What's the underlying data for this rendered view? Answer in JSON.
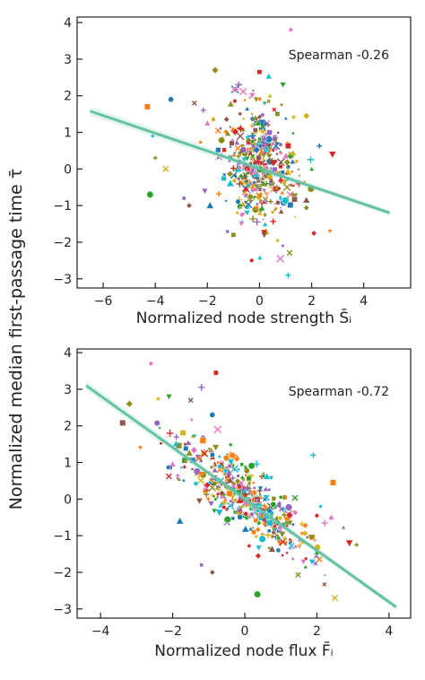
{
  "figure": {
    "shared_ylabel": "Normalized median first-passage time τ̄"
  },
  "palette": [
    "#e377c2",
    "#1f77b4",
    "#2ca02c",
    "#d62728",
    "#ff7f0e",
    "#9467bd",
    "#8c8c1f",
    "#17becf",
    "#8c564b",
    "#d8b21d"
  ],
  "fit_color": "#66c2a5",
  "chart_data": [
    {
      "type": "scatter",
      "title": "",
      "xlabel": "Normalized node strength S̄ᵢ",
      "ylabel": "Normalized median first-passage time τ̄",
      "xlim": [
        -7,
        5.8
      ],
      "ylim": [
        -3.25,
        4.15
      ],
      "xticks": [
        -6,
        -4,
        -2,
        0,
        2,
        4
      ],
      "xtick_labels": [
        "−6",
        "−4",
        "−2",
        "0",
        "2",
        "4"
      ],
      "yticks": [
        -3,
        -2,
        -1,
        0,
        1,
        2,
        3,
        4
      ],
      "ytick_labels": [
        "−3",
        "−2",
        "−1",
        "0",
        "1",
        "2",
        "3",
        "4"
      ],
      "annotation": "Spearman -0.26",
      "spearman": -0.26,
      "grid": false,
      "fit_line": {
        "x": [
          -6.5,
          5.0
        ],
        "y": [
          1.58,
          -1.2
        ]
      },
      "points": [
        {
          "x": 1.2,
          "y": 3.8
        },
        {
          "x": 0.0,
          "y": 2.65
        },
        {
          "x": -1.7,
          "y": 2.7
        },
        {
          "x": 0.4,
          "y": 2.0
        },
        {
          "x": 0.9,
          "y": 2.3
        },
        {
          "x": -0.8,
          "y": 2.3
        },
        {
          "x": -2.5,
          "y": 1.8
        },
        {
          "x": -3.4,
          "y": 1.9
        },
        {
          "x": -4.3,
          "y": 1.7
        },
        {
          "x": -4.1,
          "y": 0.9
        },
        {
          "x": -2.0,
          "y": 1.25
        },
        {
          "x": 2.8,
          "y": 0.4
        },
        {
          "x": -4.0,
          "y": 0.3
        },
        {
          "x": -3.6,
          "y": 0.0
        },
        {
          "x": -4.2,
          "y": -0.7
        },
        {
          "x": -2.9,
          "y": -0.8
        },
        {
          "x": -2.7,
          "y": -1.0
        },
        {
          "x": -1.9,
          "y": -1.0
        },
        {
          "x": 2.7,
          "y": -1.7
        },
        {
          "x": 1.1,
          "y": -2.9
        },
        {
          "x": 0.8,
          "y": -2.45
        },
        {
          "x": -0.3,
          "y": -2.5
        },
        {
          "x": -1.0,
          "y": -1.8
        },
        {
          "x": 1.8,
          "y": 1.45
        },
        {
          "x": 2.0,
          "y": 0.0
        },
        {
          "x": -2.1,
          "y": -0.6
        }
      ],
      "cloud": {
        "count": 430,
        "x_center": 0.0,
        "x_spread": 0.75,
        "y_center": 0.05,
        "y_spread": 0.85,
        "slope": -0.24
      }
    },
    {
      "type": "scatter",
      "title": "",
      "xlabel": "Normalized node flux F̄ᵢ",
      "ylabel": "Normalized median first-passage time τ̄",
      "xlim": [
        -4.65,
        4.6
      ],
      "ylim": [
        -3.25,
        4.1
      ],
      "xticks": [
        -4,
        -2,
        0,
        2,
        4
      ],
      "xtick_labels": [
        "−4",
        "−2",
        "0",
        "2",
        "4"
      ],
      "yticks": [
        -3,
        -2,
        -1,
        0,
        1,
        2,
        3,
        4
      ],
      "ytick_labels": [
        "−3",
        "−2",
        "−1",
        "0",
        "1",
        "2",
        "3",
        "4"
      ],
      "annotation": "Spearman -0.72",
      "spearman": -0.72,
      "grid": false,
      "fit_line": {
        "x": [
          -4.4,
          4.2
        ],
        "y": [
          3.1,
          -2.95
        ]
      },
      "points": [
        {
          "x": -2.6,
          "y": 3.7
        },
        {
          "x": -0.8,
          "y": 3.45
        },
        {
          "x": -3.2,
          "y": 2.6
        },
        {
          "x": -2.4,
          "y": 2.75
        },
        {
          "x": -2.1,
          "y": 2.8
        },
        {
          "x": -1.2,
          "y": 3.05
        },
        {
          "x": -1.5,
          "y": 2.7
        },
        {
          "x": -0.9,
          "y": 2.3
        },
        {
          "x": 2.45,
          "y": 0.45
        },
        {
          "x": 2.1,
          "y": -0.2
        },
        {
          "x": 2.4,
          "y": -0.5
        },
        {
          "x": 2.9,
          "y": -1.2
        },
        {
          "x": 3.1,
          "y": -1.25
        },
        {
          "x": 2.5,
          "y": -2.7
        },
        {
          "x": 0.35,
          "y": -2.6
        },
        {
          "x": -1.2,
          "y": -1.8
        },
        {
          "x": -0.9,
          "y": -2.0
        },
        {
          "x": -1.8,
          "y": -0.6
        },
        {
          "x": -2.9,
          "y": 1.4
        },
        {
          "x": 1.9,
          "y": 1.2
        },
        {
          "x": -0.75,
          "y": 1.9
        },
        {
          "x": 2.0,
          "y": -0.45
        }
      ],
      "cloud": {
        "count": 430,
        "x_center": 0.0,
        "x_spread": 0.95,
        "y_center": 0.0,
        "y_spread": 0.45,
        "slope": -0.7
      }
    }
  ]
}
